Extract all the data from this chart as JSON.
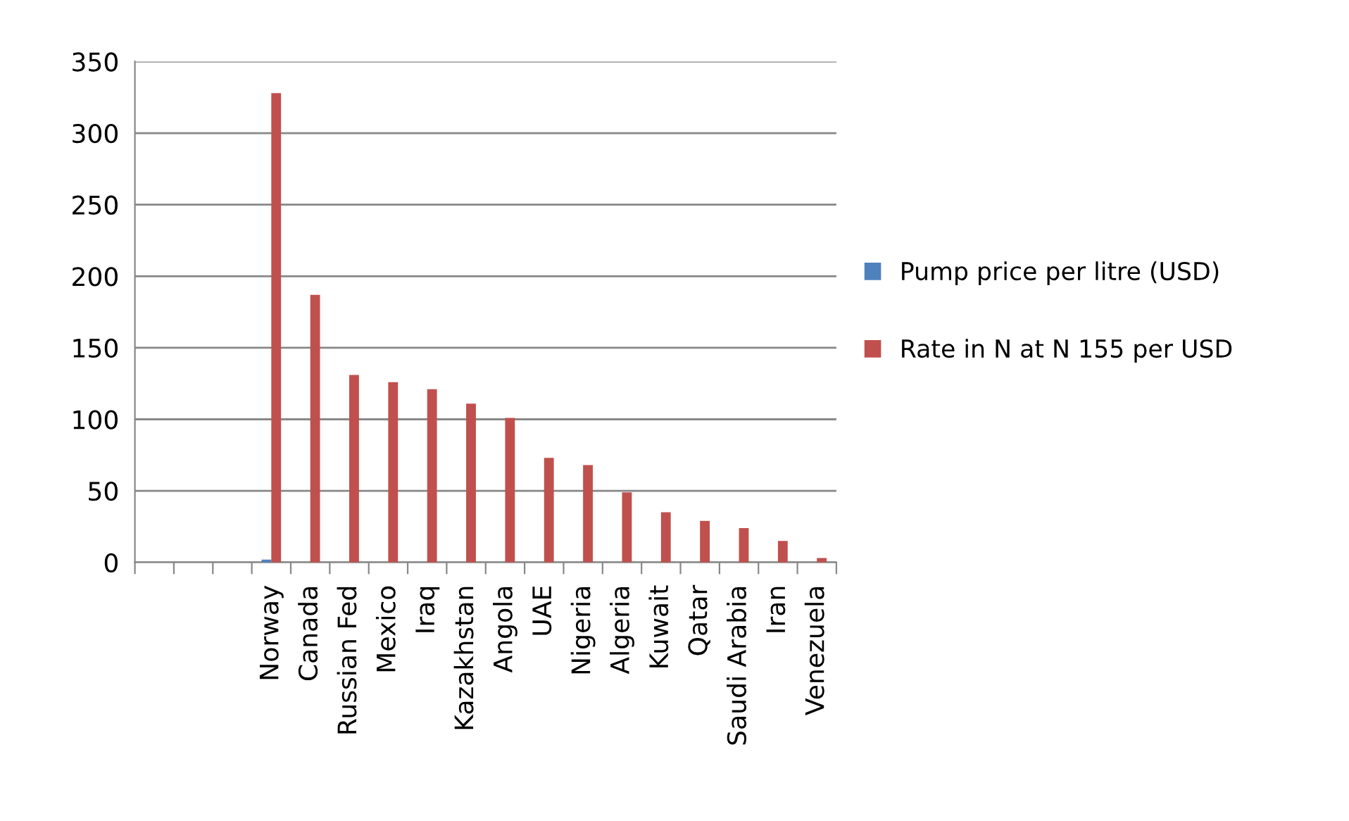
{
  "chart_data": {
    "type": "bar",
    "categories": [
      null,
      null,
      null,
      "Norway",
      "Canada",
      "Russian Fed",
      "Mexico",
      "Iraq",
      "Kazakhstan",
      "Angola",
      "UAE",
      "Nigeria",
      "Algeria",
      "Kuwait",
      "Qatar",
      "Saudi Arabia",
      "Iran",
      "Venezuela"
    ],
    "series": [
      {
        "name": "Pump price per litre (USD)",
        "color": "#4f81bd",
        "values": [
          null,
          null,
          null,
          2,
          null,
          null,
          null,
          null,
          null,
          null,
          null,
          null,
          null,
          null,
          null,
          null,
          null,
          null
        ]
      },
      {
        "name": "Rate in N at N 155 per USD",
        "color": "#c0504d",
        "values": [
          null,
          null,
          null,
          328,
          187,
          131,
          126,
          121,
          111,
          101,
          73,
          68,
          49,
          35,
          29,
          24,
          15,
          3
        ]
      }
    ],
    "ylim": [
      0,
      350
    ],
    "yticks": [
      0,
      50,
      100,
      150,
      200,
      250,
      300,
      350
    ],
    "grid": "y",
    "legend": "right"
  }
}
